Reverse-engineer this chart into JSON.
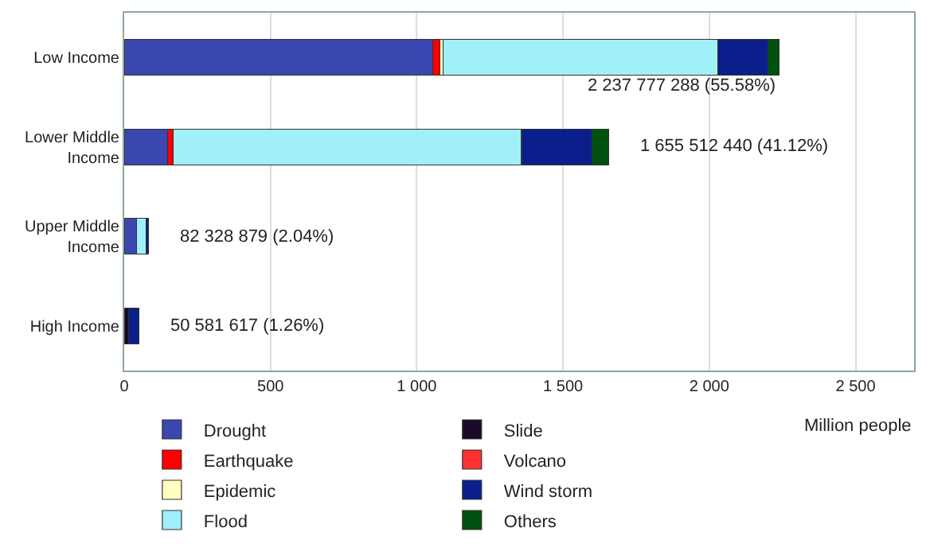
{
  "chart_data": {
    "type": "bar",
    "orientation": "horizontal",
    "stacked": true,
    "categories": [
      "Low Income",
      "Lower Middle Income",
      "Upper Middle Income",
      "High Income"
    ],
    "series": [
      {
        "name": "Drought",
        "color": "#3a47b0",
        "values": [
          1055,
          148,
          42,
          null
        ]
      },
      {
        "name": "Earthquake",
        "color": "#ff0000",
        "values": [
          25,
          20,
          null,
          null
        ]
      },
      {
        "name": "Epidemic",
        "color": "#ffffc0",
        "values": [
          10,
          null,
          null,
          null
        ]
      },
      {
        "name": "Flood",
        "color": "#a0f0fa",
        "values": [
          940,
          1190,
          32,
          null
        ]
      },
      {
        "name": "Slide",
        "color": "#1a0a28",
        "values": [
          null,
          null,
          null,
          15
        ]
      },
      {
        "name": "Volcano",
        "color": "#ff3030",
        "values": [
          null,
          null,
          null,
          null
        ]
      },
      {
        "name": "Wind storm",
        "color": "#0a1f8c",
        "values": [
          170,
          240,
          8,
          35
        ]
      },
      {
        "name": "Others",
        "color": "#005010",
        "values": [
          38,
          58,
          null,
          null
        ]
      }
    ],
    "xlim": [
      0,
      2700
    ],
    "xticks": [
      0,
      500,
      {
        "value": 1000,
        "label": "1 000"
      },
      {
        "value": 1500,
        "label": "1 500"
      },
      {
        "value": 2000,
        "label": "2 000"
      },
      {
        "value": 2500,
        "label": "2 500"
      }
    ],
    "xlabel": "Million people",
    "grid": "x",
    "legend": "bottom",
    "annotations": [
      {
        "text": "2 237 777 288 (55.58%)",
        "x": 2238,
        "y": "Low Income"
      },
      {
        "text": "1 655 512 440 (41.12%)",
        "x": 1656,
        "y": "Lower Middle Income"
      },
      {
        "text": "82 328 879 (2.04%)",
        "x": 82,
        "y": "Upper Middle Income"
      },
      {
        "text": "50 581 617 (1.26%)",
        "x": 50,
        "y": "High Income"
      }
    ]
  }
}
